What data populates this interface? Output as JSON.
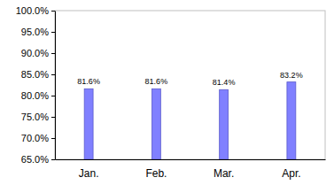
{
  "chart_data": {
    "type": "bar",
    "categories": [
      "Jan.",
      "Feb.",
      "Mar.",
      "Apr."
    ],
    "values": [
      81.6,
      81.6,
      81.4,
      83.2
    ],
    "value_labels": [
      "81.6%",
      "81.6%",
      "81.4%",
      "83.2%"
    ],
    "color": "#8080ff",
    "ylim": [
      65,
      100
    ],
    "yticks": [
      {
        "value": 65,
        "label": "65.0%"
      },
      {
        "value": 70,
        "label": "70.0%"
      },
      {
        "value": 75,
        "label": "75.0%"
      },
      {
        "value": 80,
        "label": "80.0%"
      },
      {
        "value": 85,
        "label": "85.0%"
      },
      {
        "value": 90,
        "label": "90.0%"
      },
      {
        "value": 95,
        "label": "95.0%"
      },
      {
        "value": 100,
        "label": "100.0%"
      }
    ],
    "grid": false,
    "data_labels": true
  }
}
